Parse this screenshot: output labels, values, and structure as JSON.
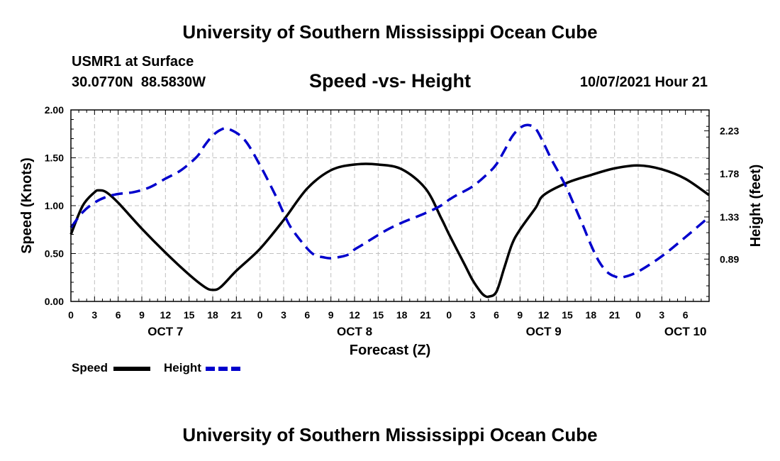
{
  "header": {
    "title": "University of Southern Mississippi Ocean Cube",
    "station": "USMR1 at Surface",
    "coords": "30.0770N  88.5830W",
    "chart_title": "Speed -vs- Height",
    "datetime": "10/07/2021 Hour 21"
  },
  "footer": {
    "title": "University of Southern Mississippi Ocean Cube"
  },
  "legend": {
    "speed_label": "Speed",
    "height_label": "Height"
  },
  "colors": {
    "speed": "#000000",
    "height": "#0000cc",
    "grid": "#c0c0c0"
  },
  "chart_data": {
    "type": "line",
    "title": "Speed -vs- Height",
    "xlabel": "Forecast (Z)",
    "ylabel": "Speed (Knots)",
    "y2label": "Height (feet)",
    "x_range_hours": [
      0,
      81
    ],
    "ylim": [
      0,
      2
    ],
    "y2lim": [
      0.448,
      2.448
    ],
    "x_tick_labels": [
      "0",
      "3",
      "6",
      "9",
      "12",
      "15",
      "18",
      "21",
      "0",
      "3",
      "6",
      "9",
      "12",
      "15",
      "18",
      "21",
      "0",
      "3",
      "6",
      "9",
      "12",
      "15",
      "18",
      "21",
      "0",
      "3",
      "6"
    ],
    "date_labels": [
      {
        "label": "OCT 7",
        "hour": 12
      },
      {
        "label": "OCT 8",
        "hour": 36
      },
      {
        "label": "OCT 9",
        "hour": 60
      },
      {
        "label": "OCT 10",
        "hour": 78
      }
    ],
    "y_ticks": [
      "0.00",
      "0.50",
      "1.00",
      "1.50",
      "2.00"
    ],
    "y2_ticks": [
      "0.89",
      "1.33",
      "1.78",
      "2.23"
    ],
    "grid": true,
    "series": [
      {
        "name": "Speed",
        "axis": "left",
        "style": "solid",
        "x": [
          0,
          1.5,
          3,
          3.6,
          4.5,
          6,
          9,
          12,
          15,
          17,
          18,
          19,
          21,
          24,
          27,
          30,
          33,
          36,
          39,
          42,
          45,
          47,
          48,
          50,
          51,
          52,
          52.5,
          53,
          54,
          55,
          56,
          57,
          59,
          60,
          63,
          66,
          69,
          72,
          75,
          78,
          81
        ],
        "values": [
          0.7,
          1.0,
          1.14,
          1.16,
          1.14,
          1.03,
          0.76,
          0.51,
          0.28,
          0.15,
          0.12,
          0.15,
          0.32,
          0.55,
          0.85,
          1.18,
          1.37,
          1.43,
          1.43,
          1.38,
          1.18,
          0.87,
          0.7,
          0.38,
          0.22,
          0.1,
          0.06,
          0.05,
          0.1,
          0.35,
          0.6,
          0.75,
          0.98,
          1.11,
          1.24,
          1.32,
          1.39,
          1.42,
          1.38,
          1.28,
          1.11
        ]
      },
      {
        "name": "Height",
        "axis": "right",
        "style": "dashed",
        "x": [
          0,
          1.5,
          3,
          4.5,
          6,
          8,
          10,
          12,
          14,
          16,
          17,
          18,
          19,
          20,
          22,
          24,
          26,
          27,
          28,
          30,
          31,
          32,
          33,
          35,
          36,
          37,
          40,
          42,
          45,
          47,
          48,
          49,
          51,
          53,
          54,
          55,
          56,
          57,
          58,
          59,
          60,
          61,
          62,
          63,
          64,
          65,
          66,
          67,
          68,
          69,
          70,
          72,
          75,
          78,
          81
        ],
        "values": [
          1.22,
          1.38,
          1.48,
          1.54,
          1.57,
          1.59,
          1.64,
          1.73,
          1.82,
          1.96,
          2.08,
          2.18,
          2.24,
          2.25,
          2.14,
          1.87,
          1.55,
          1.37,
          1.21,
          1.0,
          0.93,
          0.91,
          0.9,
          0.93,
          0.99,
          1.04,
          1.19,
          1.27,
          1.37,
          1.45,
          1.51,
          1.56,
          1.65,
          1.79,
          1.88,
          2.02,
          2.17,
          2.26,
          2.29,
          2.25,
          2.1,
          1.93,
          1.78,
          1.62,
          1.43,
          1.24,
          1.04,
          0.87,
          0.76,
          0.71,
          0.7,
          0.76,
          0.92,
          1.12,
          1.33
        ]
      }
    ]
  }
}
